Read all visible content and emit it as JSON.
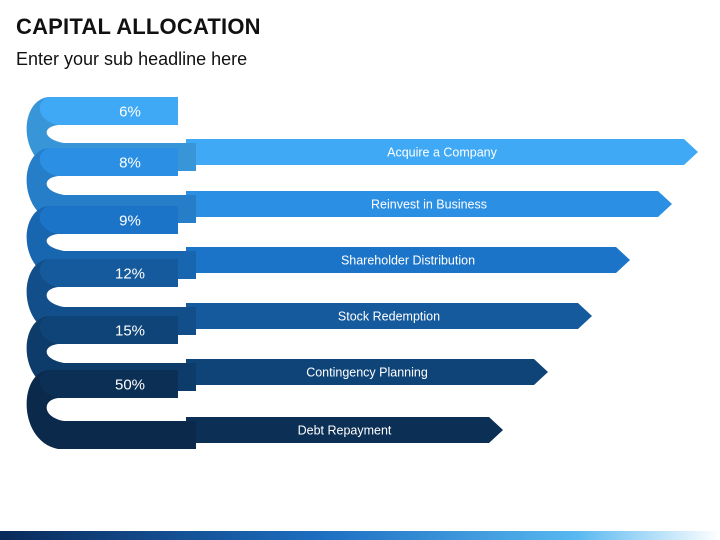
{
  "header": {
    "title": "CAPITAL ALLOCATION",
    "subtitle": "Enter your sub headline here"
  },
  "items": [
    {
      "percent": "6%",
      "label": "Acquire a Company",
      "color": "#3fa9f5"
    },
    {
      "percent": "8%",
      "label": "Reinvest in Business",
      "color": "#2b8fe3"
    },
    {
      "percent": "9%",
      "label": "Shareholder Distribution",
      "color": "#1c74c8"
    },
    {
      "percent": "12%",
      "label": "Stock Redemption",
      "color": "#155a9d"
    },
    {
      "percent": "15%",
      "label": "Contingency Planning",
      "color": "#0f4478"
    },
    {
      "percent": "50%",
      "label": "Debt Repayment",
      "color": "#0b2f55"
    }
  ],
  "footer_colors": [
    "#0a2a5a",
    "#1d6fc2",
    "#58b8f0",
    "#ffffff"
  ]
}
